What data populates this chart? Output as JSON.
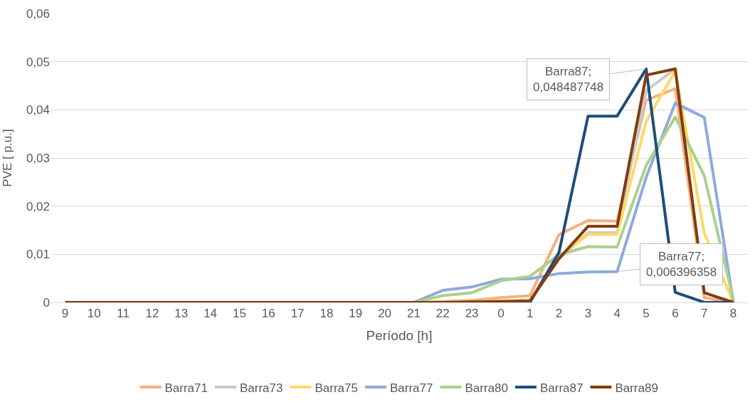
{
  "chart_data": {
    "type": "line",
    "xlabel": "Período [h]",
    "ylabel": "PVE [ p.u.]",
    "categories": [
      "9",
      "10",
      "11",
      "12",
      "13",
      "14",
      "15",
      "16",
      "17",
      "18",
      "19",
      "20",
      "21",
      "22",
      "23",
      "0",
      "1",
      "2",
      "3",
      "4",
      "5",
      "6",
      "7",
      "8"
    ],
    "series": [
      {
        "name": "Barra71",
        "color": "#f4b183",
        "values": [
          null,
          null,
          null,
          null,
          null,
          null,
          null,
          null,
          null,
          null,
          null,
          0,
          0,
          0.0002,
          0.0004,
          0.001,
          0.0014,
          0.0141,
          0.017,
          0.0169,
          0.042,
          0.0444,
          0.001,
          0
        ]
      },
      {
        "name": "Barra73",
        "color": "#c9c9c9",
        "values": [
          null,
          null,
          null,
          null,
          null,
          null,
          null,
          null,
          null,
          null,
          null,
          null,
          null,
          0,
          0.0001,
          0.0003,
          0.0005,
          0.009,
          0.0145,
          0.0145,
          0.044,
          0.0485,
          null,
          null
        ]
      },
      {
        "name": "Barra75",
        "color": "#ffd966",
        "values": [
          null,
          null,
          null,
          null,
          null,
          null,
          null,
          null,
          null,
          null,
          null,
          null,
          null,
          0,
          0.0001,
          0.0003,
          0.0004,
          0.0095,
          0.0141,
          0.0141,
          0.0376,
          0.048,
          0.0144,
          0
        ]
      },
      {
        "name": "Barra77",
        "color": "#8faadc",
        "values": [
          null,
          null,
          null,
          null,
          null,
          null,
          null,
          null,
          null,
          null,
          null,
          null,
          0,
          0.0025,
          0.0032,
          0.0048,
          0.0049,
          0.006,
          0.0063,
          0.006396358,
          0.026,
          0.0414,
          0.0384,
          0
        ]
      },
      {
        "name": "Barra80",
        "color": "#a9d18e",
        "values": [
          null,
          null,
          null,
          null,
          null,
          null,
          null,
          null,
          null,
          null,
          null,
          null,
          0,
          0.0014,
          0.002,
          0.0045,
          0.0054,
          0.0099,
          0.0116,
          0.0115,
          0.0285,
          0.0385,
          0.0263,
          0.0005
        ]
      },
      {
        "name": "Barra87",
        "color": "#1f4e79",
        "values": [
          null,
          null,
          null,
          null,
          null,
          null,
          null,
          null,
          null,
          null,
          null,
          null,
          null,
          null,
          null,
          0,
          0,
          0.0104,
          0.0387,
          0.0387,
          0.048487748,
          0.0021,
          0,
          0
        ]
      },
      {
        "name": "Barra89",
        "color": "#843c0c",
        "values": [
          0,
          0,
          0,
          0,
          0,
          0,
          0,
          0,
          0,
          0,
          0,
          0,
          0,
          0,
          0.0001,
          0.0002,
          0.0003,
          0.0091,
          0.0158,
          0.0158,
          0.0472,
          0.0485,
          0.002,
          0
        ]
      }
    ],
    "annotations": [
      {
        "text": "Barra87;\n0,048487748",
        "x": "5",
        "y": 0.048487748
      },
      {
        "text": "Barra77;\n0,006396358",
        "x": "4",
        "y": 0.006396358
      }
    ],
    "ylim": [
      0,
      0.06
    ],
    "yticks": [
      {
        "value": 0,
        "label": "0"
      },
      {
        "value": 0.01,
        "label": "0,01"
      },
      {
        "value": 0.02,
        "label": "0,02"
      },
      {
        "value": 0.03,
        "label": "0,03"
      },
      {
        "value": 0.04,
        "label": "0,04"
      },
      {
        "value": 0.05,
        "label": "0,05"
      },
      {
        "value": 0.06,
        "label": "0,06"
      }
    ],
    "grid": "y",
    "legend": "bottom",
    "marker": "none",
    "line_style": "solid"
  }
}
